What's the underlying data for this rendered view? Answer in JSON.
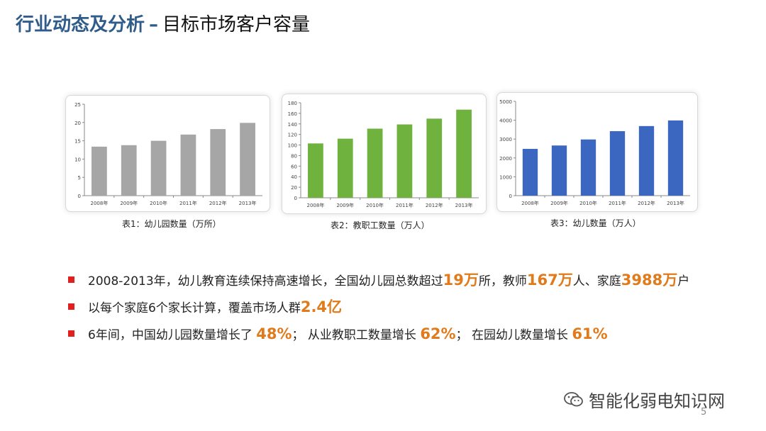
{
  "title": {
    "main": "行业动态及分析",
    "sep": "–",
    "sub": "目标市场客户容量"
  },
  "captions": [
    "表1：幼儿园数量（万所）",
    "表2：教职工数量（万人）",
    "表3：幼儿数量（万人）"
  ],
  "chart_data": [
    {
      "type": "bar",
      "categories": [
        "2008年",
        "2009年",
        "2010年",
        "2011年",
        "2012年",
        "2013年"
      ],
      "series": [
        {
          "values": [
            13.4,
            13.8,
            15.0,
            16.7,
            18.2,
            19.9
          ]
        }
      ],
      "ylim": [
        0,
        25
      ],
      "yticks": [
        0,
        5,
        10,
        15,
        20,
        25
      ],
      "color": "#a6a6a6",
      "grid": false
    },
    {
      "type": "bar",
      "categories": [
        "2008年",
        "2009年",
        "2010年",
        "2011年",
        "2012年",
        "2013年"
      ],
      "series": [
        {
          "values": [
            103,
            112,
            131,
            139,
            150,
            167
          ]
        }
      ],
      "ylim": [
        0,
        180
      ],
      "yticks": [
        0,
        20,
        40,
        60,
        80,
        100,
        120,
        140,
        160,
        180
      ],
      "color": "#6fb33e",
      "grid": false
    },
    {
      "type": "bar",
      "categories": [
        "2008年",
        "2009年",
        "2010年",
        "2011年",
        "2012年",
        "2013年"
      ],
      "series": [
        {
          "values": [
            2480,
            2660,
            2980,
            3420,
            3690,
            3988
          ]
        }
      ],
      "ylim": [
        0,
        5000
      ],
      "yticks": [
        0,
        1000,
        2000,
        3000,
        4000,
        5000
      ],
      "color": "#3b67c1",
      "grid": false
    }
  ],
  "bullets": [
    {
      "segments": [
        {
          "text": "2008-2013年，幼儿教育连续保持高速增长，全国幼儿园总数超过",
          "hl": false
        },
        {
          "text": "19万",
          "hl": true
        },
        {
          "text": "所，教师",
          "hl": false
        },
        {
          "text": "167万",
          "hl": true
        },
        {
          "text": "人、家庭",
          "hl": false
        },
        {
          "text": "3988万",
          "hl": true
        },
        {
          "text": "户",
          "hl": false
        }
      ]
    },
    {
      "segments": [
        {
          "text": "以每个家庭6个家长计算，覆盖市场人群",
          "hl": false
        },
        {
          "text": "2.4亿",
          "hl": true
        }
      ]
    },
    {
      "segments": [
        {
          "text": "6年间，中国幼儿园数量增长了 ",
          "hl": false
        },
        {
          "text": "48%",
          "hl": true
        },
        {
          "text": "；  从业教职工数量增长 ",
          "hl": false
        },
        {
          "text": "62%",
          "hl": true
        },
        {
          "text": "；  在园幼儿数量增长 ",
          "hl": false
        },
        {
          "text": "61%",
          "hl": true
        }
      ]
    }
  ],
  "colors": {
    "highlight": "#e07a1a",
    "bullet": "#e11f1f",
    "title": "#2f5c8a"
  },
  "watermark": {
    "text": "智能化弱电知识网",
    "icon": "wechat-icon"
  },
  "page_number": "5"
}
